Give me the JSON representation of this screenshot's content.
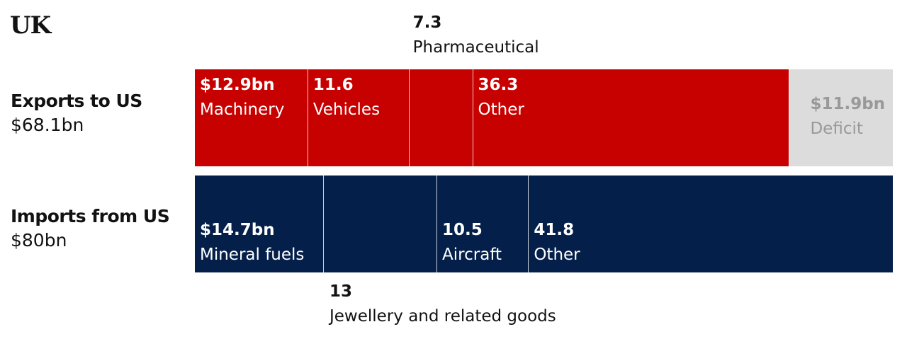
{
  "title": "UK",
  "colors": {
    "exports": "#c70000",
    "imports": "#041f4a",
    "deficit": "#dcdcdc",
    "deficit_text": "#999999",
    "in_bar_text": "#ffffff"
  },
  "chart_data": {
    "type": "bar",
    "stacked": true,
    "orientation": "horizontal",
    "unit": "$bn",
    "xlim": [
      0,
      80
    ],
    "rows": [
      {
        "name": "Exports to US",
        "total_label": "$68.1bn",
        "segments": [
          {
            "value": 12.9,
            "value_label": "$12.9bn",
            "label": "Machinery"
          },
          {
            "value": 11.6,
            "value_label": "11.6",
            "label": "Vehicles"
          },
          {
            "value": 7.3,
            "value_label": "7.3",
            "label": "Pharmaceutical",
            "external": "above"
          },
          {
            "value": 36.3,
            "value_label": "36.3",
            "label": "Other"
          },
          {
            "value": 11.9,
            "value_label": "$11.9bn",
            "label": "Deficit",
            "deficit": true
          }
        ]
      },
      {
        "name": "Imports from US",
        "total_label": "$80bn",
        "segments": [
          {
            "value": 14.7,
            "value_label": "$14.7bn",
            "label": "Mineral fuels"
          },
          {
            "value": 13,
            "value_label": "13",
            "label": "Jewellery and related goods",
            "external": "below"
          },
          {
            "value": 10.5,
            "value_label": "10.5",
            "label": "Aircraft"
          },
          {
            "value": 41.8,
            "value_label": "41.8",
            "label": "Other"
          }
        ]
      }
    ]
  }
}
